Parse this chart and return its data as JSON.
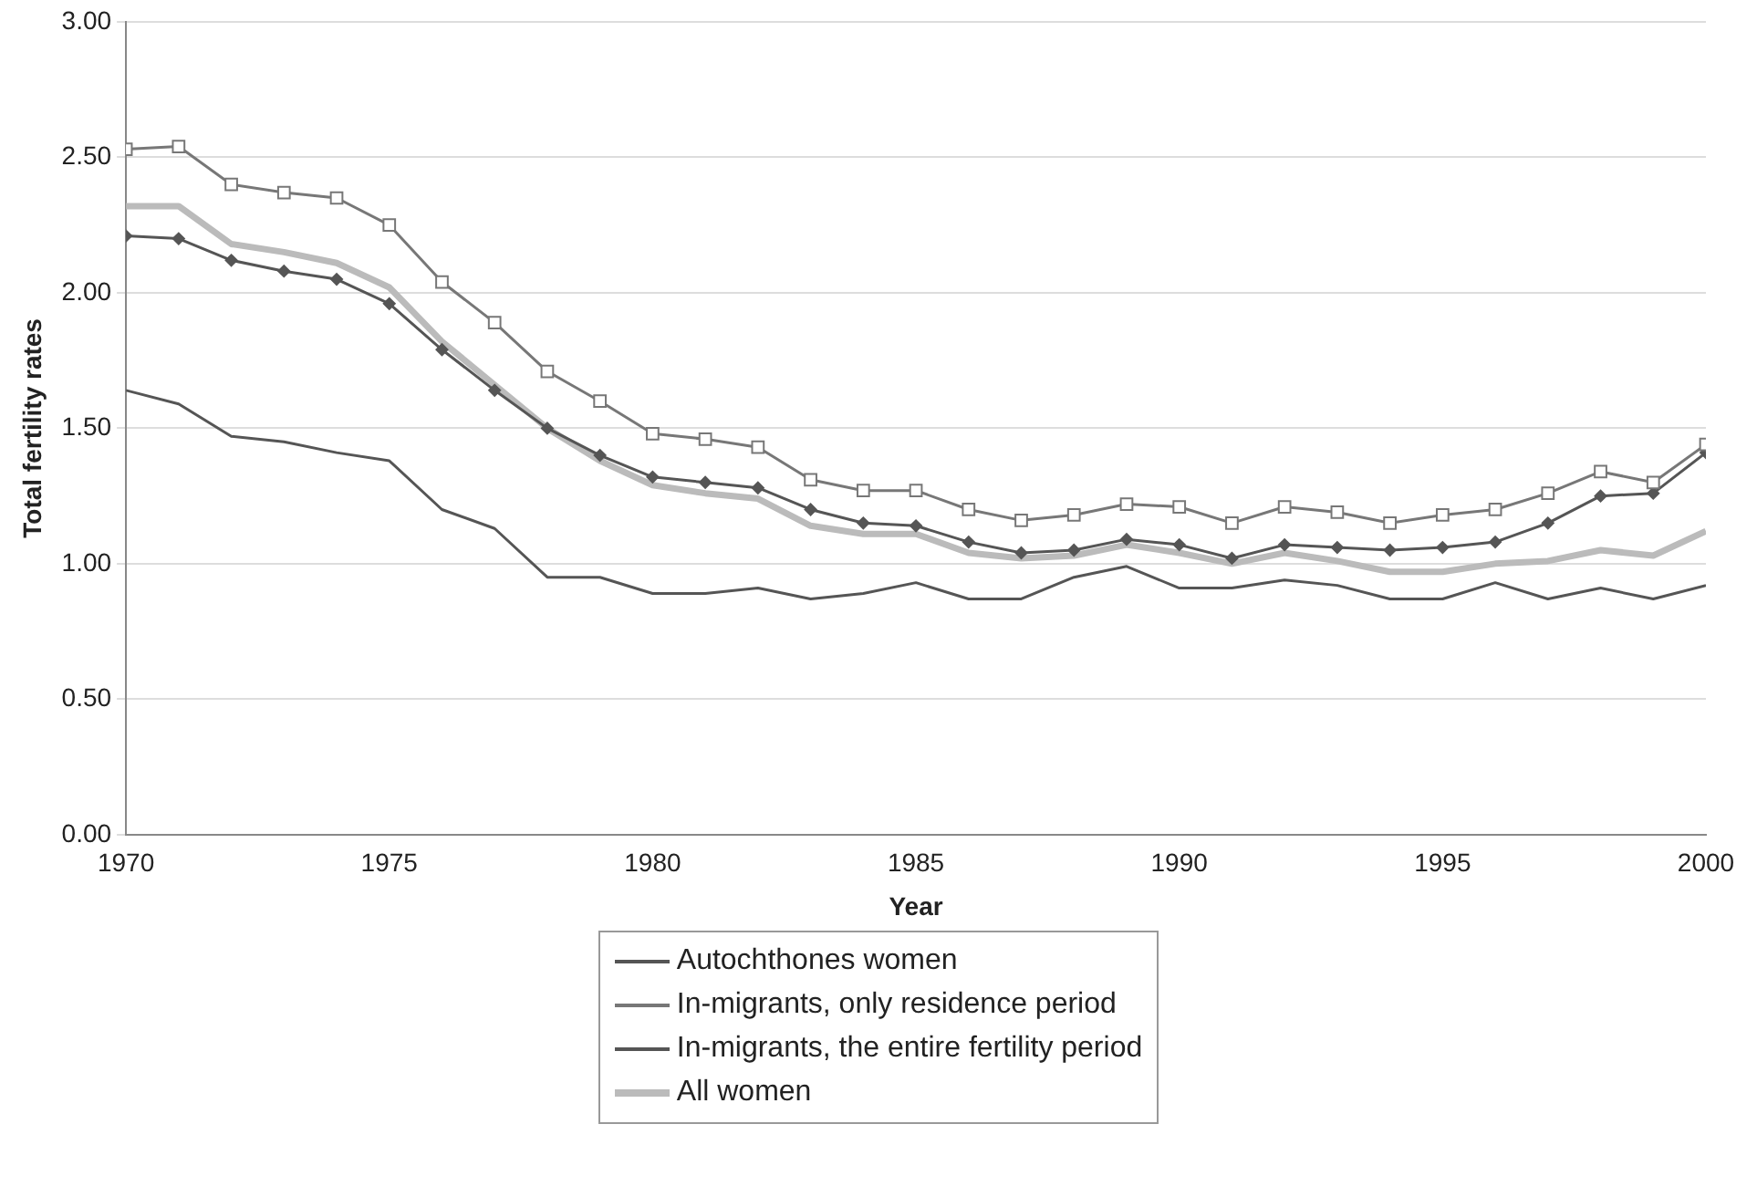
{
  "chart_data": {
    "type": "line",
    "xlabel": "Year",
    "ylabel": "Total fertility rates",
    "x": [
      1970,
      1971,
      1972,
      1973,
      1974,
      1975,
      1976,
      1977,
      1978,
      1979,
      1980,
      1981,
      1982,
      1983,
      1984,
      1985,
      1986,
      1987,
      1988,
      1989,
      1990,
      1991,
      1992,
      1993,
      1994,
      1995,
      1996,
      1997,
      1998,
      1999,
      2000
    ],
    "series": [
      {
        "name": "Autochthones women",
        "color": "#555555",
        "marker": "none",
        "values": [
          1.64,
          1.59,
          1.47,
          1.45,
          1.41,
          1.38,
          1.2,
          1.13,
          0.95,
          0.95,
          0.89,
          0.89,
          0.91,
          0.87,
          0.89,
          0.93,
          0.87,
          0.87,
          0.95,
          0.99,
          0.91,
          0.91,
          0.94,
          0.92,
          0.87,
          0.87,
          0.93,
          0.87,
          0.91,
          0.87,
          0.92
        ]
      },
      {
        "name": "In-migrants, only residence period",
        "color": "#777777",
        "marker": "square",
        "values": [
          2.53,
          2.54,
          2.4,
          2.37,
          2.35,
          2.25,
          2.04,
          1.89,
          1.71,
          1.6,
          1.48,
          1.46,
          1.43,
          1.31,
          1.27,
          1.27,
          1.2,
          1.16,
          1.18,
          1.22,
          1.21,
          1.15,
          1.21,
          1.19,
          1.15,
          1.18,
          1.2,
          1.26,
          1.34,
          1.3,
          1.44
        ]
      },
      {
        "name": "In-migrants, the entire fertility period",
        "color": "#555555",
        "marker": "diamond",
        "values": [
          2.21,
          2.2,
          2.12,
          2.08,
          2.05,
          1.96,
          1.79,
          1.64,
          1.5,
          1.4,
          1.32,
          1.3,
          1.28,
          1.2,
          1.15,
          1.14,
          1.08,
          1.04,
          1.05,
          1.09,
          1.07,
          1.02,
          1.07,
          1.06,
          1.05,
          1.06,
          1.08,
          1.15,
          1.25,
          1.26,
          1.41
        ]
      },
      {
        "name": "All women",
        "color": "#bbbbbb",
        "marker": "none",
        "values": [
          2.32,
          2.32,
          2.18,
          2.15,
          2.11,
          2.02,
          1.82,
          1.66,
          1.5,
          1.38,
          1.29,
          1.26,
          1.24,
          1.14,
          1.11,
          1.11,
          1.04,
          1.02,
          1.03,
          1.07,
          1.04,
          1.0,
          1.04,
          1.01,
          0.97,
          0.97,
          1.0,
          1.01,
          1.05,
          1.03,
          1.12
        ]
      }
    ],
    "xlim": [
      1970,
      2000
    ],
    "xticks": [
      1970,
      1975,
      1980,
      1985,
      1990,
      1995,
      2000
    ],
    "ylim": [
      0,
      3
    ],
    "yticks": [
      {
        "value": 0,
        "label": "0.00"
      },
      {
        "value": 0.5,
        "label": "0.50"
      },
      {
        "value": 1,
        "label": "1.00"
      },
      {
        "value": 1.5,
        "label": "1.50"
      },
      {
        "value": 2,
        "label": "2.00"
      },
      {
        "value": 2.5,
        "label": "2.50"
      },
      {
        "value": 3,
        "label": "3.00"
      }
    ],
    "grid": "y",
    "legend": "bottom"
  }
}
